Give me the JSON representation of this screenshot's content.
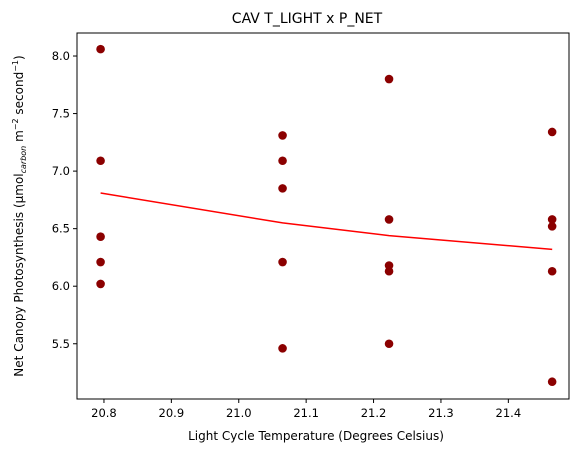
{
  "chart_data": {
    "type": "scatter",
    "title": "CAV T_LIGHT x P_NET",
    "xlabel": "Light Cycle Temperature (Degrees Celsius)",
    "ylabel": {
      "prefix": "Net Canopy Photosynthesis (µmol",
      "sub": "carbon",
      "mid1": " m",
      "sup1": "−2",
      "mid2": " second",
      "sup2": "−1",
      "suffix": ")"
    },
    "xlim": [
      20.76,
      21.49
    ],
    "ylim": [
      5.02,
      8.2
    ],
    "xticks": [
      20.8,
      20.9,
      21.0,
      21.1,
      21.2,
      21.3,
      21.4
    ],
    "xtick_labels": [
      "20.8",
      "20.9",
      "21.0",
      "21.1",
      "21.2",
      "21.3",
      "21.4"
    ],
    "yticks": [
      5.5,
      6.0,
      6.5,
      7.0,
      7.5,
      8.0
    ],
    "ytick_labels": [
      "5.5",
      "6.0",
      "6.5",
      "7.0",
      "7.5",
      "8.0"
    ],
    "grid": false,
    "colors": {
      "points": "#8b0000",
      "trend": "#ff0000"
    },
    "points": [
      {
        "x": 20.795,
        "y": 8.06
      },
      {
        "x": 20.795,
        "y": 7.09
      },
      {
        "x": 20.795,
        "y": 6.43
      },
      {
        "x": 20.795,
        "y": 6.21
      },
      {
        "x": 20.795,
        "y": 6.02
      },
      {
        "x": 21.065,
        "y": 7.31
      },
      {
        "x": 21.065,
        "y": 7.09
      },
      {
        "x": 21.065,
        "y": 6.85
      },
      {
        "x": 21.065,
        "y": 6.21
      },
      {
        "x": 21.065,
        "y": 5.46
      },
      {
        "x": 21.223,
        "y": 7.8
      },
      {
        "x": 21.223,
        "y": 6.58
      },
      {
        "x": 21.223,
        "y": 6.18
      },
      {
        "x": 21.223,
        "y": 6.13
      },
      {
        "x": 21.223,
        "y": 5.5
      },
      {
        "x": 21.465,
        "y": 7.34
      },
      {
        "x": 21.465,
        "y": 6.58
      },
      {
        "x": 21.465,
        "y": 6.52
      },
      {
        "x": 21.465,
        "y": 6.13
      },
      {
        "x": 21.465,
        "y": 5.17
      }
    ],
    "trend_line": [
      {
        "x": 20.795,
        "y": 6.81
      },
      {
        "x": 21.065,
        "y": 6.55
      },
      {
        "x": 21.223,
        "y": 6.44
      },
      {
        "x": 21.465,
        "y": 6.32
      }
    ]
  }
}
